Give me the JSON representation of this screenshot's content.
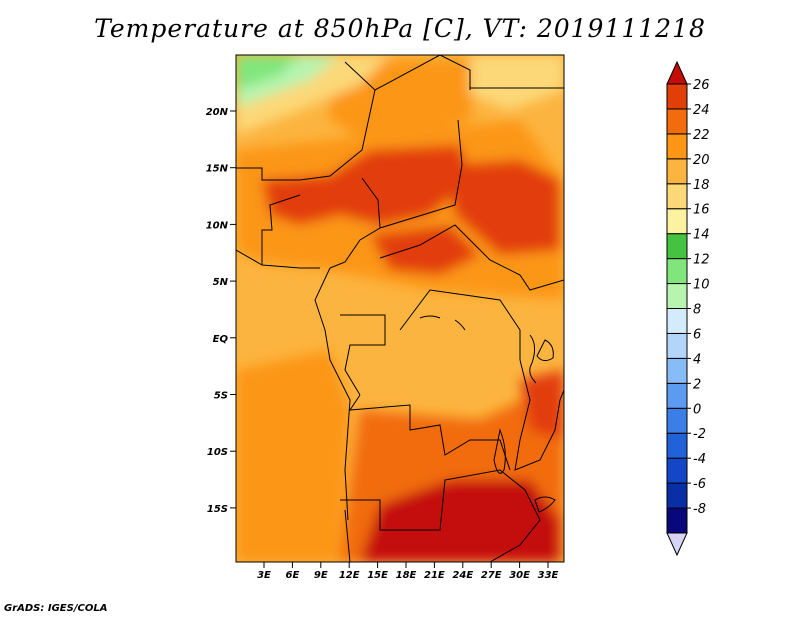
{
  "title": "Temperature at 850hPa [C], VT: 2019111218",
  "footer": "GrADS: IGES/COLA",
  "map": {
    "lat_labels": [
      "20N",
      "15N",
      "10N",
      "5N",
      "EQ",
      "5S",
      "10S",
      "15S"
    ],
    "lon_labels": [
      "3E",
      "6E",
      "9E",
      "12E",
      "15E",
      "18E",
      "21E",
      "24E",
      "27E",
      "30E",
      "33E"
    ]
  },
  "colorbar": {
    "labels": [
      "26",
      "24",
      "22",
      "20",
      "18",
      "16",
      "14",
      "12",
      "10",
      "8",
      "6",
      "4",
      "2",
      "0",
      "-2",
      "-4",
      "-6",
      "-8"
    ],
    "colors": [
      "#d8d4f4",
      "#08087c",
      "#0a2ea6",
      "#1446c8",
      "#2262d8",
      "#3a7ee6",
      "#5c9cf0",
      "#88bcf6",
      "#b2d6fa",
      "#d2ecfc",
      "#b6f4b0",
      "#80e67c",
      "#44c240",
      "#fcf2a0",
      "#fcd878",
      "#fcb440",
      "#fc9614",
      "#f26c0e",
      "#e23e08",
      "#c40c08"
    ]
  }
}
